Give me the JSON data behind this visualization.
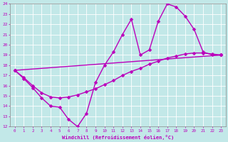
{
  "xlabel": "Windchill (Refroidissement éolien,°C)",
  "xlim": [
    -0.5,
    23.5
  ],
  "ylim": [
    12,
    24
  ],
  "xticks": [
    0,
    1,
    2,
    3,
    4,
    5,
    6,
    7,
    8,
    9,
    10,
    11,
    12,
    13,
    14,
    15,
    16,
    17,
    18,
    19,
    20,
    21,
    22,
    23
  ],
  "yticks": [
    12,
    13,
    14,
    15,
    16,
    17,
    18,
    19,
    20,
    21,
    22,
    23,
    24
  ],
  "bg_color": "#c2e8e8",
  "grid_color": "#b0d8d8",
  "line_color": "#bb00bb",
  "line1_x": [
    0,
    1,
    2,
    3,
    4,
    5,
    6,
    7,
    8,
    9,
    10,
    11,
    12,
    13,
    14,
    15,
    16,
    17,
    18,
    19,
    20,
    21,
    22,
    23
  ],
  "line1_y": [
    17.5,
    16.7,
    15.8,
    14.8,
    14.0,
    13.9,
    12.7,
    12.0,
    13.3,
    16.3,
    18.0,
    19.3,
    21.0,
    22.5,
    19.0,
    19.5,
    22.3,
    24.0,
    23.7,
    22.8,
    21.5,
    19.3,
    19.0,
    19.0
  ],
  "line2_x": [
    0,
    1,
    2,
    3,
    4,
    5,
    6,
    7,
    8,
    9,
    10,
    11,
    12,
    13,
    14,
    15,
    16,
    17,
    18,
    19,
    20,
    21,
    22,
    23
  ],
  "line2_y": [
    17.5,
    16.8,
    16.0,
    15.3,
    14.9,
    14.8,
    14.9,
    15.1,
    15.4,
    15.7,
    16.1,
    16.5,
    17.0,
    17.4,
    17.7,
    18.1,
    18.4,
    18.7,
    18.9,
    19.1,
    19.2,
    19.2,
    19.1,
    19.0
  ],
  "line3_x": [
    0,
    23
  ],
  "line3_y": [
    17.5,
    19.0
  ],
  "markersize": 2.5,
  "linewidth": 1.0
}
